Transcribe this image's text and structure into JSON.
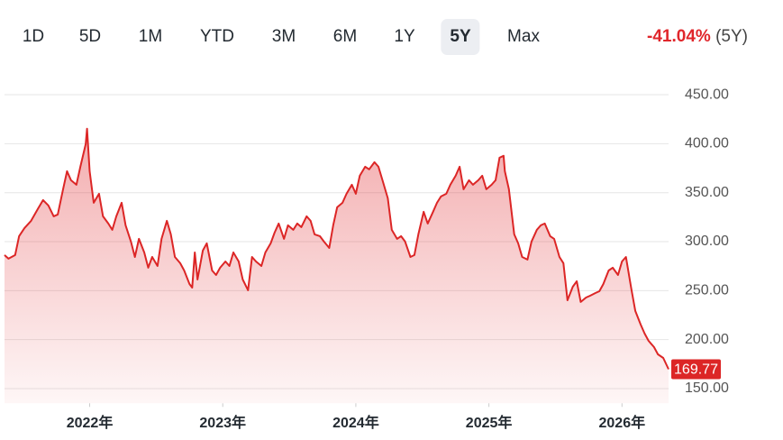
{
  "range_buttons": [
    "1D",
    "5D",
    "1M",
    "YTD",
    "3M",
    "6M",
    "1Y",
    "5Y",
    "Max"
  ],
  "selected_index": 7,
  "change": {
    "percent": "-41.04%",
    "period": "(5Y)"
  },
  "chart_data": {
    "type": "area",
    "series": [
      {
        "color": "#dc2626",
        "x": [
          2021.36,
          2021.39,
          2021.44,
          2021.47,
          2021.51,
          2021.56,
          2021.61,
          2021.65,
          2021.69,
          2021.73,
          2021.76,
          2021.8,
          2021.83,
          2021.86,
          2021.9,
          2021.93,
          2021.97,
          2021.98,
          2022.0,
          2022.03,
          2022.07,
          2022.1,
          2022.14,
          2022.17,
          2022.2,
          2022.24,
          2022.27,
          2022.31,
          2022.34,
          2022.37,
          2022.41,
          2022.44,
          2022.47,
          2022.51,
          2022.54,
          2022.58,
          2022.61,
          2022.64,
          2022.68,
          2022.71,
          2022.75,
          2022.77,
          2022.79,
          2022.81,
          2022.85,
          2022.88,
          2022.92,
          2022.95,
          2022.98,
          2023.02,
          2023.05,
          2023.08,
          2023.12,
          2023.15,
          2023.19,
          2023.22,
          2023.25,
          2023.29,
          2023.32,
          2023.36,
          2023.39,
          2023.42,
          2023.46,
          2023.49,
          2023.53,
          2023.56,
          2023.59,
          2023.63,
          2023.66,
          2023.69,
          2023.73,
          2023.76,
          2023.8,
          2023.83,
          2023.86,
          2023.9,
          2023.93,
          2023.97,
          2024.0,
          2024.03,
          2024.07,
          2024.1,
          2024.14,
          2024.17,
          2024.2,
          2024.24,
          2024.27,
          2024.31,
          2024.34,
          2024.37,
          2024.41,
          2024.44,
          2024.47,
          2024.51,
          2024.54,
          2024.58,
          2024.61,
          2024.64,
          2024.68,
          2024.71,
          2024.75,
          2024.78,
          2024.81,
          2024.85,
          2024.88,
          2024.92,
          2024.95,
          2024.98,
          2025.02,
          2025.05,
          2025.08,
          2025.11,
          2025.12,
          2025.15,
          2025.19,
          2025.22,
          2025.25,
          2025.29,
          2025.32,
          2025.36,
          2025.39,
          2025.42,
          2025.46,
          2025.49,
          2025.53,
          2025.56,
          2025.59,
          2025.63,
          2025.66,
          2025.69,
          2025.73,
          2025.76,
          2025.8,
          2025.83,
          2025.86,
          2025.9,
          2025.93,
          2025.97,
          2026.0,
          2026.03,
          2026.07,
          2026.1,
          2026.14,
          2026.17,
          2026.2,
          2026.24,
          2026.27,
          2026.31,
          2026.35
        ],
        "values": [
          286.3,
          282.6,
          286.3,
          305.6,
          313.9,
          321.3,
          333.2,
          342.4,
          336.9,
          325.9,
          327.7,
          353.5,
          371.9,
          362.7,
          358.1,
          376.5,
          399.5,
          415.2,
          371.9,
          339.7,
          348.9,
          325.9,
          318.5,
          312.1,
          325.9,
          339.7,
          316.7,
          300.1,
          284.4,
          302.9,
          289.0,
          273.4,
          284.4,
          275.2,
          302.9,
          321.3,
          307.5,
          284.4,
          278.0,
          270.6,
          256.8,
          253.1,
          289.0,
          261.4,
          290.9,
          298.3,
          270.6,
          266.0,
          273.4,
          279.8,
          275.2,
          289.0,
          279.8,
          261.4,
          250.4,
          284.4,
          279.8,
          275.2,
          289.0,
          298.3,
          309.3,
          318.5,
          302.9,
          316.7,
          312.1,
          318.5,
          314.8,
          325.9,
          321.3,
          307.5,
          305.6,
          300.1,
          293.6,
          316.7,
          335.1,
          339.7,
          348.9,
          358.1,
          348.9,
          367.3,
          376.5,
          373.8,
          381.1,
          376.5,
          362.7,
          344.3,
          312.1,
          302.9,
          305.6,
          300.1,
          284.4,
          286.3,
          307.5,
          330.5,
          318.5,
          330.5,
          339.7,
          346.1,
          348.9,
          358.1,
          367.3,
          376.5,
          353.5,
          362.7,
          358.1,
          362.7,
          367.3,
          353.5,
          358.1,
          362.7,
          385.7,
          387.6,
          371.9,
          353.5,
          307.5,
          298.3,
          284.4,
          281.7,
          300.1,
          312.1,
          316.7,
          318.5,
          305.6,
          302.9,
          284.4,
          278.0,
          240.2,
          254.0,
          259.6,
          238.4,
          243.0,
          244.8,
          247.6,
          249.4,
          256.8,
          270.6,
          273.4,
          266.0,
          279.8,
          284.4,
          252.2,
          229.2,
          215.4,
          206.2,
          198.8,
          192.4,
          185.0,
          181.3,
          169.77
        ]
      }
    ],
    "xlim": [
      2021.36,
      2026.35
    ],
    "xticks": [
      {
        "value": 2022,
        "label": "2022年"
      },
      {
        "value": 2023,
        "label": "2023年"
      },
      {
        "value": 2024,
        "label": "2024年"
      },
      {
        "value": 2025,
        "label": "2025年"
      },
      {
        "value": 2026,
        "label": "2026年"
      }
    ],
    "ylim": [
      135,
      470
    ],
    "yticks": [
      {
        "value": 150,
        "label": "150.00"
      },
      {
        "value": 200,
        "label": "200.00"
      },
      {
        "value": 250,
        "label": "250.00"
      },
      {
        "value": 300,
        "label": "300.00"
      },
      {
        "value": 350,
        "label": "350.00"
      },
      {
        "value": 400,
        "label": "400.00"
      },
      {
        "value": 450,
        "label": "450.00"
      }
    ],
    "grid": true
  }
}
